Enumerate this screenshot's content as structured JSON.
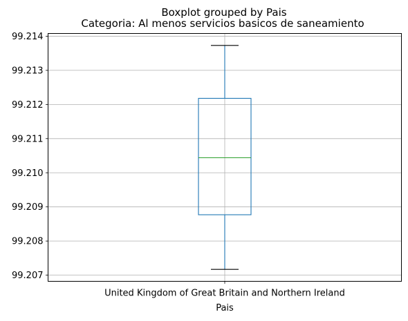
{
  "chart_data": {
    "type": "boxplot",
    "suptitle": "Boxplot grouped by Pais",
    "title": "Categoria: Al menos servicios basicos de saneamiento",
    "xlabel": "Pais",
    "ylabel": "",
    "categories": [
      "United Kingdom of Great Britain and Northern Ireland"
    ],
    "boxes": [
      {
        "category": "United Kingdom of Great Britain and Northern Ireland",
        "whisker_low": 99.20717,
        "q1": 99.20877,
        "median": 99.21044,
        "q3": 99.21218,
        "whisker_high": 99.21373
      }
    ],
    "yticks": [
      "99.207",
      "99.208",
      "99.209",
      "99.210",
      "99.211",
      "99.212",
      "99.213",
      "99.214"
    ],
    "ylim": [
      99.20682,
      99.21408
    ],
    "grid": true,
    "colors": {
      "box": "#1f77b4",
      "median": "#2ca02c",
      "whisker": "#000000",
      "grid": "#b0b0b0",
      "axes": "#000000"
    }
  }
}
